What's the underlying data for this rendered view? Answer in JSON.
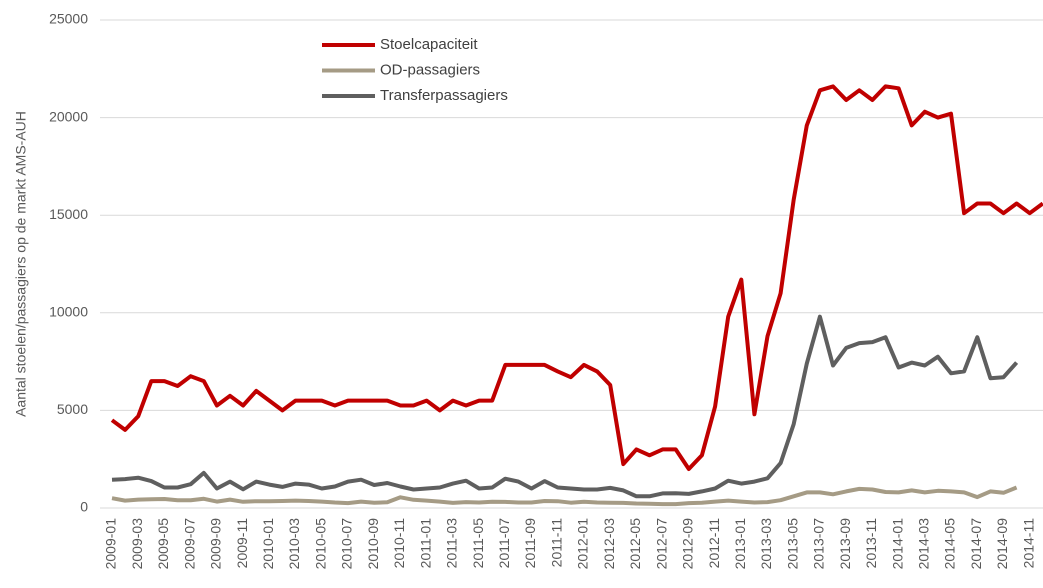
{
  "chart_data": {
    "type": "line",
    "y_label": "Aantal stoelen/passagiers op de markt AMS-AUH",
    "categories": [
      "2009-01",
      null,
      "2009-03",
      null,
      "2009-05",
      null,
      "2009-07",
      null,
      "2009-09",
      null,
      "2009-11",
      null,
      "2010-01",
      null,
      "2010-03",
      null,
      "2010-05",
      null,
      "2010-07",
      null,
      "2010-09",
      null,
      "2010-11",
      null,
      "2011-01",
      null,
      "2011-03",
      null,
      "2011-05",
      null,
      "2011-07",
      null,
      "2011-09",
      null,
      "2011-11",
      null,
      "2012-01",
      null,
      "2012-03",
      null,
      "2012-05",
      null,
      "2012-07",
      null,
      "2012-09",
      null,
      "2012-11",
      null,
      "2013-01",
      null,
      "2013-03",
      null,
      "2013-05",
      null,
      "2013-07",
      null,
      "2013-09",
      null,
      "2013-11",
      null,
      "2014-01",
      null,
      "2014-03",
      null,
      "2014-05",
      null,
      "2014-07",
      null,
      "2014-09",
      null,
      "2014-11",
      null
    ],
    "series": [
      {
        "name": "Stoelcapaciteit",
        "color": "#c00000",
        "values": [
          4500,
          4000,
          4700,
          6500,
          6500,
          6250,
          6750,
          6500,
          5250,
          5750,
          5250,
          6000,
          5500,
          5000,
          5500,
          5500,
          5500,
          5250,
          5500,
          5500,
          5500,
          5500,
          5250,
          5250,
          5500,
          5000,
          5500,
          5250,
          5500,
          5500,
          7330,
          7330,
          7330,
          7330,
          7000,
          6700,
          7330,
          7000,
          6300,
          2250,
          3000,
          2700,
          3000,
          3000,
          2000,
          2700,
          5200,
          9800,
          11700,
          4800,
          8800,
          11000,
          15800,
          19600,
          21400,
          21600,
          20900,
          21400,
          20900,
          21600,
          21500,
          19600,
          20300,
          20000,
          20200,
          15100,
          15600,
          15600,
          15100,
          15600,
          15100,
          15600
        ]
      },
      {
        "name": "OD-passagiers",
        "color": "#a59b85",
        "values": [
          500,
          380,
          430,
          450,
          460,
          400,
          400,
          470,
          330,
          430,
          320,
          350,
          350,
          360,
          380,
          360,
          330,
          280,
          250,
          330,
          270,
          290,
          550,
          420,
          380,
          330,
          260,
          300,
          280,
          320,
          310,
          280,
          280,
          360,
          350,
          270,
          320,
          280,
          270,
          260,
          230,
          220,
          200,
          200,
          250,
          270,
          330,
          380,
          330,
          280,
          300,
          400,
          600,
          800,
          800,
          700,
          850,
          980,
          950,
          820,
          800,
          900,
          800,
          880,
          850,
          800,
          560,
          850,
          780,
          1050,
          null,
          null
        ]
      },
      {
        "name": "Transferpassagiers",
        "color": "#5f5f5f",
        "values": [
          1450,
          1480,
          1550,
          1380,
          1050,
          1050,
          1220,
          1800,
          1000,
          1350,
          960,
          1350,
          1200,
          1080,
          1250,
          1200,
          1000,
          1100,
          1350,
          1450,
          1180,
          1280,
          1100,
          950,
          1000,
          1050,
          1250,
          1400,
          1000,
          1050,
          1500,
          1350,
          1000,
          1380,
          1050,
          1000,
          950,
          950,
          1030,
          900,
          600,
          600,
          750,
          760,
          720,
          850,
          1000,
          1400,
          1250,
          1350,
          1520,
          2300,
          4300,
          7400,
          9800,
          7300,
          8200,
          8450,
          8500,
          8750,
          7200,
          7450,
          7300,
          7750,
          6900,
          7000,
          8750,
          6650,
          6700,
          7450,
          null,
          null
        ]
      }
    ],
    "ylim": [
      0,
      25000
    ],
    "yticks": [
      0,
      5000,
      10000,
      15000,
      20000,
      25000
    ],
    "grid": true
  }
}
